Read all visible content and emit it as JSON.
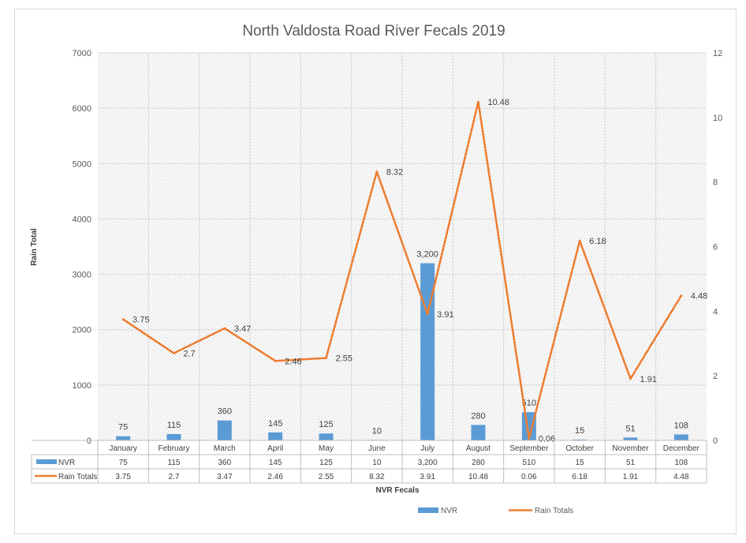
{
  "chart_data": {
    "type": "bar",
    "title": "North Valdosta Road River Fecals 2019",
    "xlabel": "NVR Fecals",
    "ylabel": "Rain Total",
    "categories": [
      "January",
      "February",
      "March",
      "April",
      "May",
      "June",
      "July",
      "August",
      "September",
      "October",
      "November",
      "December"
    ],
    "ylim": [
      0,
      7000
    ],
    "yticks": [
      0,
      1000,
      2000,
      3000,
      4000,
      5000,
      6000,
      7000
    ],
    "y2lim": [
      0,
      12
    ],
    "y2ticks": [
      0,
      2,
      4,
      6,
      8,
      10,
      12
    ],
    "grid": true,
    "legend_position": "bottom",
    "series": [
      {
        "name": "NVR",
        "type": "bar",
        "axis": "left",
        "color": "#5b9bd5",
        "values": [
          75,
          115,
          360,
          145,
          125,
          10,
          3200,
          280,
          510,
          15,
          51,
          108
        ],
        "labels": [
          "75",
          "115",
          "360",
          "145",
          "125",
          "10",
          "3,200",
          "280",
          "510",
          "15",
          "51",
          "108"
        ]
      },
      {
        "name": "Rain Totals",
        "type": "line",
        "axis": "right",
        "color": "#ed7d31",
        "values": [
          3.75,
          2.7,
          3.47,
          2.46,
          2.55,
          8.32,
          3.91,
          10.48,
          0.06,
          6.18,
          1.91,
          4.48
        ],
        "labels": [
          "3.75",
          "2.7",
          "3.47",
          "2.46",
          "2.55",
          "8.32",
          "3.91",
          "10.48",
          "0.06",
          "6.18",
          "1.91",
          "4.48"
        ]
      }
    ]
  }
}
